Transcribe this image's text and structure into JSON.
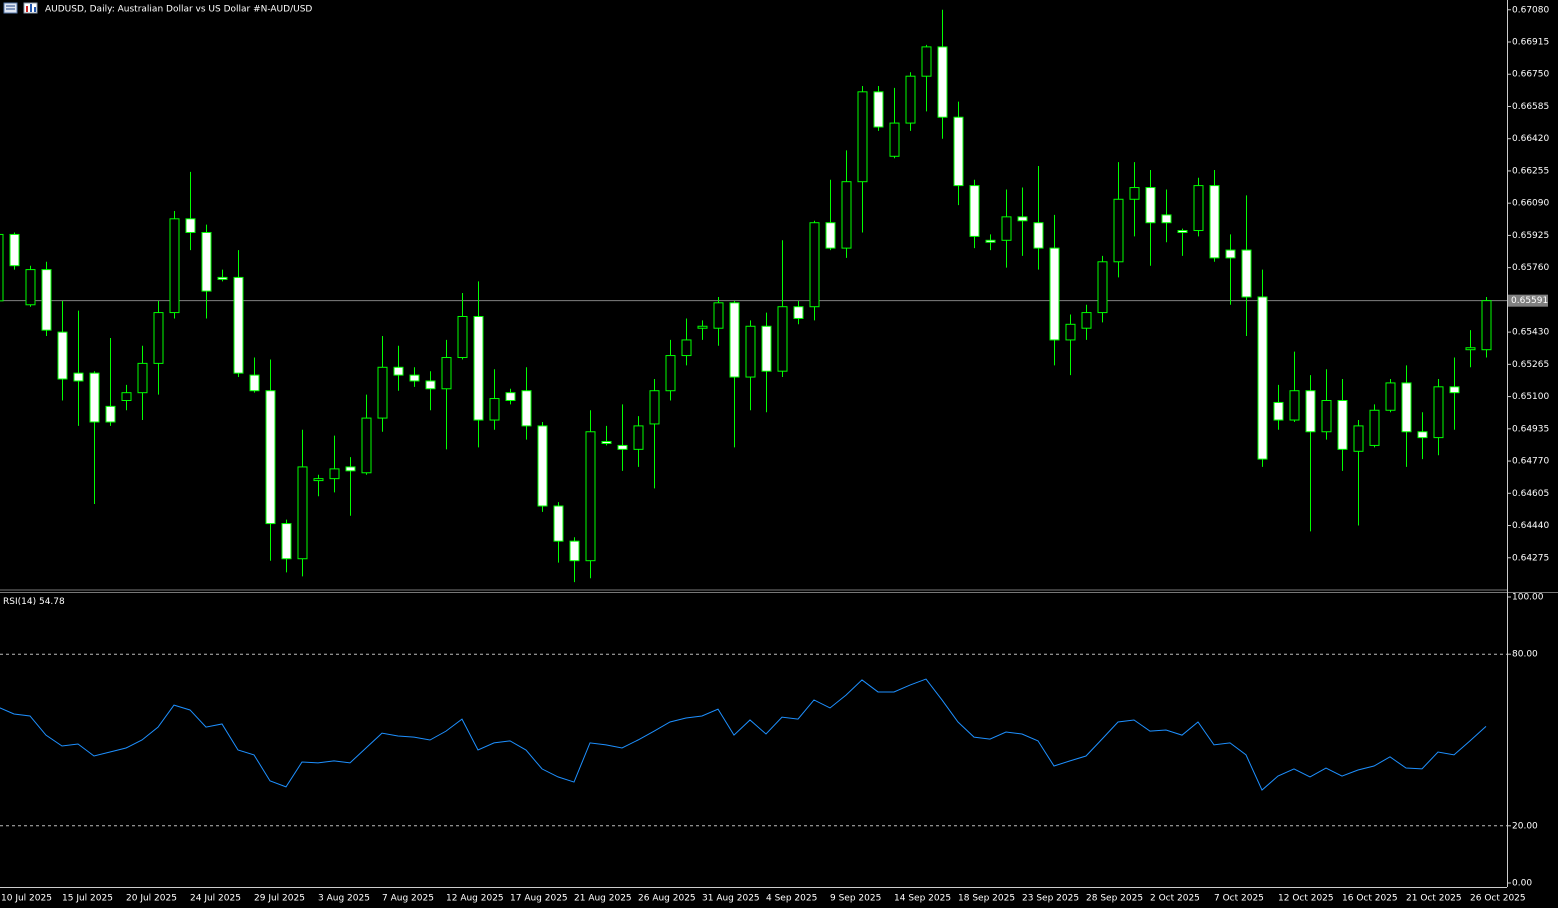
{
  "chart_data": [
    {
      "type": "candlestick",
      "title": "AUDUSD, Daily:  Australian Dollar vs US Dollar #N-AUD/USD",
      "categories": [
        "10 Jul 2025",
        null,
        null,
        null,
        "15 Jul 2025",
        null,
        null,
        null,
        "20 Jul 2025",
        null,
        null,
        null,
        "24 Jul 2025",
        null,
        null,
        null,
        "29 Jul 2025",
        null,
        null,
        null,
        "3 Aug 2025",
        null,
        null,
        null,
        "7 Aug 2025",
        null,
        null,
        null,
        "12 Aug 2025",
        null,
        null,
        null,
        "17 Aug 2025",
        null,
        null,
        null,
        "21 Aug 2025",
        null,
        null,
        null,
        "26 Aug 2025",
        null,
        null,
        null,
        "31 Aug 2025",
        null,
        null,
        null,
        "4 Sep 2025",
        null,
        null,
        null,
        "9 Sep 2025",
        null,
        null,
        null,
        "14 Sep 2025",
        null,
        null,
        null,
        "18 Sep 2025",
        null,
        null,
        null,
        "23 Sep 2025",
        null,
        null,
        null,
        "28 Sep 2025",
        null,
        null,
        null,
        "2 Oct 2025",
        null,
        null,
        null,
        "7 Oct 2025",
        null,
        null,
        null,
        "12 Oct 2025",
        null,
        null,
        null,
        "16 Oct 2025",
        null,
        null,
        null,
        "21 Oct 2025",
        null,
        null,
        null,
        "26 Oct 2025",
        null
      ],
      "open": [
        0.6559,
        0.6593,
        0.6557,
        0.6575,
        0.6543,
        0.6522,
        0.6522,
        0.6505,
        0.6508,
        0.6512,
        0.6527,
        0.6553,
        0.6601,
        0.6594,
        0.6571,
        0.6571,
        0.6521,
        0.6513,
        0.6445,
        0.6427,
        0.6467,
        0.6468,
        0.6474,
        0.6471,
        0.6499,
        0.6525,
        0.6521,
        0.6518,
        0.6514,
        0.653,
        0.6551,
        0.6498,
        0.6512,
        0.6513,
        0.6495,
        0.6454,
        0.6436,
        0.6426,
        0.6487,
        0.6485,
        0.6483,
        0.6496,
        0.6513,
        0.6531,
        0.6545,
        0.6545,
        0.6558,
        0.652,
        0.6546,
        0.6523,
        0.6556,
        0.6556,
        0.6599,
        0.6586,
        0.662,
        0.6666,
        0.6633,
        0.665,
        0.6674,
        0.6689,
        0.6653,
        0.6618,
        0.659,
        0.659,
        0.6602,
        0.6599,
        0.6586,
        0.6539,
        0.6545,
        0.6553,
        0.6579,
        0.6611,
        0.6617,
        0.6603,
        0.6595,
        0.6595,
        0.6618,
        0.6585,
        0.6585,
        0.6561,
        0.6507,
        0.6498,
        0.6513,
        0.6492,
        0.6508,
        0.6482,
        0.6485,
        0.6503,
        0.6517,
        0.6492,
        0.6489,
        0.6515,
        0.6534,
        0.6534
      ],
      "high": [
        0.6594,
        0.6594,
        0.6577,
        0.6579,
        0.6559,
        0.6554,
        0.6523,
        0.654,
        0.6516,
        0.6536,
        0.6559,
        0.6605,
        0.6625,
        0.6598,
        0.6575,
        0.6585,
        0.653,
        0.6529,
        0.6447,
        0.6493,
        0.647,
        0.649,
        0.6479,
        0.6511,
        0.6541,
        0.6536,
        0.6525,
        0.6523,
        0.6539,
        0.6563,
        0.6569,
        0.6524,
        0.6514,
        0.6525,
        0.6497,
        0.6456,
        0.6438,
        0.6503,
        0.6495,
        0.6506,
        0.65,
        0.6519,
        0.6539,
        0.655,
        0.6549,
        0.6561,
        0.6559,
        0.6549,
        0.6553,
        0.659,
        0.6559,
        0.66,
        0.6621,
        0.6636,
        0.6669,
        0.6669,
        0.6668,
        0.6676,
        0.669,
        0.6708,
        0.6661,
        0.6621,
        0.6593,
        0.6616,
        0.6617,
        0.6628,
        0.6603,
        0.6552,
        0.6557,
        0.6582,
        0.663,
        0.663,
        0.6626,
        0.6616,
        0.6596,
        0.6622,
        0.6626,
        0.6593,
        0.6613,
        0.6575,
        0.6516,
        0.6533,
        0.6521,
        0.6524,
        0.6519,
        0.6498,
        0.6506,
        0.6519,
        0.6526,
        0.6502,
        0.6519,
        0.653,
        0.6544,
        0.6561
      ],
      "low": [
        0.6535,
        0.6575,
        0.6556,
        0.6541,
        0.6508,
        0.6495,
        0.6455,
        0.6495,
        0.6503,
        0.6498,
        0.6511,
        0.655,
        0.6585,
        0.655,
        0.6569,
        0.652,
        0.6512,
        0.6426,
        0.642,
        0.6418,
        0.6459,
        0.6461,
        0.6449,
        0.647,
        0.6492,
        0.6513,
        0.6515,
        0.6503,
        0.6483,
        0.6529,
        0.6484,
        0.6493,
        0.6506,
        0.6488,
        0.6451,
        0.6425,
        0.6415,
        0.6417,
        0.6485,
        0.6472,
        0.6474,
        0.6463,
        0.6508,
        0.6526,
        0.6539,
        0.6536,
        0.6484,
        0.6503,
        0.6502,
        0.652,
        0.6547,
        0.6549,
        0.6585,
        0.6581,
        0.6594,
        0.6646,
        0.6632,
        0.6646,
        0.6656,
        0.6642,
        0.6608,
        0.6586,
        0.6585,
        0.6576,
        0.6582,
        0.6575,
        0.6526,
        0.6521,
        0.6539,
        0.6548,
        0.6571,
        0.6592,
        0.6577,
        0.6589,
        0.6582,
        0.6592,
        0.6579,
        0.6557,
        0.6541,
        0.6474,
        0.6493,
        0.6497,
        0.6441,
        0.6488,
        0.6472,
        0.6444,
        0.6484,
        0.6502,
        0.6474,
        0.6478,
        0.648,
        0.6493,
        0.6525,
        0.653
      ],
      "close": [
        0.6593,
        0.6577,
        0.6575,
        0.6544,
        0.6519,
        0.6518,
        0.6497,
        0.6497,
        0.6512,
        0.6527,
        0.6553,
        0.6601,
        0.6594,
        0.6564,
        0.657,
        0.6522,
        0.6513,
        0.6445,
        0.6427,
        0.6474,
        0.6468,
        0.6473,
        0.6472,
        0.6499,
        0.6525,
        0.6521,
        0.6518,
        0.6514,
        0.653,
        0.6551,
        0.6498,
        0.6509,
        0.6508,
        0.6495,
        0.6454,
        0.6436,
        0.6426,
        0.6492,
        0.6486,
        0.6483,
        0.6495,
        0.6513,
        0.6531,
        0.6539,
        0.6546,
        0.6558,
        0.652,
        0.6546,
        0.6523,
        0.6556,
        0.655,
        0.6599,
        0.6586,
        0.662,
        0.6666,
        0.6648,
        0.665,
        0.6674,
        0.6689,
        0.6653,
        0.6618,
        0.6592,
        0.6589,
        0.6602,
        0.66,
        0.6586,
        0.6539,
        0.6547,
        0.6553,
        0.6579,
        0.6611,
        0.6617,
        0.6599,
        0.6599,
        0.6594,
        0.6618,
        0.6581,
        0.6581,
        0.6561,
        0.6478,
        0.6498,
        0.6513,
        0.6492,
        0.6508,
        0.6483,
        0.6495,
        0.6503,
        0.6517,
        0.6492,
        0.6489,
        0.6515,
        0.6512,
        0.6535,
        0.65591
      ],
      "up_color": "#000000",
      "down_color": "#ffffff",
      "wick_color": "#00ff00",
      "current_price": 0.65591,
      "current_price_color": "#808080",
      "ylim": [
        0.6411,
        0.6713
      ],
      "yticks": [
        {
          "value": 0.6708,
          "label": "0.67080"
        },
        0.66915,
        {
          "value": 0.6675,
          "label": "0.66750"
        },
        0.66585,
        {
          "value": 0.6642,
          "label": "0.66420"
        },
        0.66255,
        {
          "value": 0.6609,
          "label": "0.66090"
        },
        0.65925,
        {
          "value": 0.6576,
          "label": "0.65760"
        },
        {
          "value": 0.6543,
          "label": "0.65430"
        },
        0.65265,
        {
          "value": 0.651,
          "label": "0.65100"
        },
        0.64935,
        {
          "value": 0.6477,
          "label": "0.64770"
        },
        0.64605,
        {
          "value": 0.6444,
          "label": "0.64440"
        },
        0.64275
      ]
    },
    {
      "type": "line",
      "title": "RSI(14)",
      "current": 54.78,
      "color": "#1e90ff",
      "values": [
        61.5,
        59.1,
        58.4,
        51.7,
        47.9,
        48.6,
        44.4,
        45.8,
        47.2,
        50.0,
        54.5,
        62.2,
        60.5,
        54.5,
        55.6,
        46.5,
        44.8,
        35.7,
        33.6,
        42.3,
        42.0,
        42.7,
        42.0,
        47.2,
        52.4,
        51.4,
        51.0,
        50.0,
        53.1,
        57.3,
        46.5,
        49.0,
        49.7,
        46.5,
        39.9,
        37.1,
        35.3,
        49.0,
        48.3,
        47.2,
        50.0,
        53.1,
        56.3,
        57.7,
        58.4,
        60.8,
        51.7,
        57.0,
        52.1,
        58.0,
        57.3,
        64.0,
        61.2,
        65.7,
        71.0,
        66.8,
        66.8,
        69.2,
        71.3,
        64.0,
        56.3,
        51.0,
        50.3,
        52.8,
        52.1,
        49.7,
        40.9,
        42.7,
        44.4,
        50.3,
        56.3,
        57.0,
        53.1,
        53.5,
        51.7,
        56.3,
        48.3,
        49.0,
        44.8,
        32.5,
        37.4,
        39.9,
        37.1,
        40.2,
        37.4,
        39.5,
        40.9,
        44.1,
        40.2,
        39.9,
        45.8,
        44.8,
        49.7,
        54.78
      ],
      "levels": [
        80,
        20
      ],
      "ylim": [
        -1.4,
        101.4
      ],
      "yticks": [
        {
          "value": 100,
          "label": "100.00"
        },
        {
          "value": 80,
          "label": "80.00"
        },
        {
          "value": 20,
          "label": "20.00"
        },
        {
          "value": 0,
          "label": "0.00"
        }
      ]
    }
  ]
}
